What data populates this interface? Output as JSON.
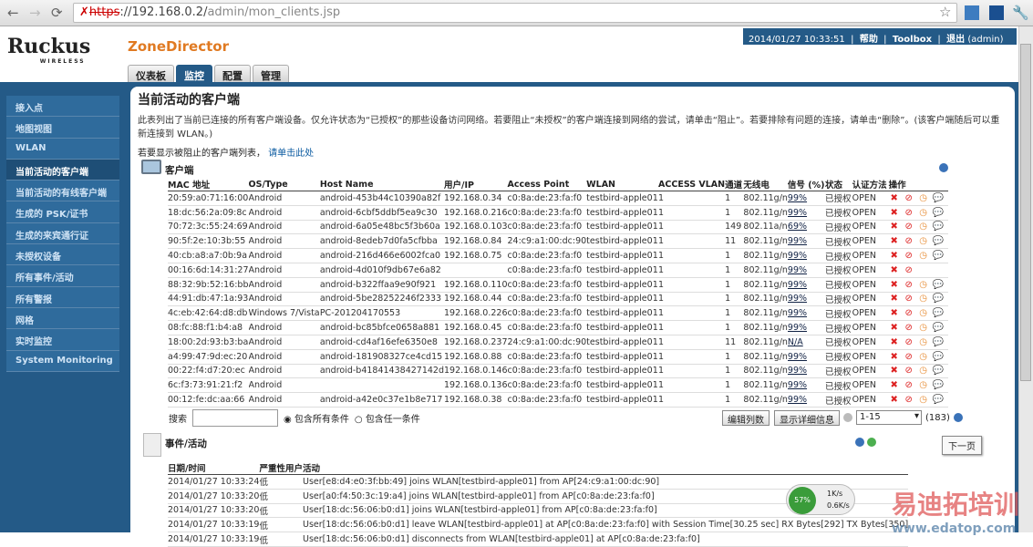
{
  "browser": {
    "url_scheme": "https",
    "url_rest": "://192.168.0.2/",
    "url_path": "admin/mon_clients.jsp"
  },
  "header": {
    "brand": "Ruckus",
    "brand_sub": "WIRELESS",
    "product": "ZoneDirector",
    "datetime": "2014/01/27  10:33:51",
    "help": "帮助",
    "toolbox": "Toolbox",
    "logout": "退出",
    "user": "(admin)"
  },
  "tabs": [
    "仪表板",
    "监控",
    "配置",
    "管理"
  ],
  "active_tab": 1,
  "sidebar": [
    "接入点",
    "地图视图",
    "WLAN",
    "当前活动的客户端",
    "当前活动的有线客户端",
    "生成的 PSK/证书",
    "生成的来宾通行证",
    "未授权设备",
    "所有事件/活动",
    "所有警报",
    "网格",
    "实时监控",
    "System Monitoring"
  ],
  "sidebar_active": 3,
  "main": {
    "title": "当前活动的客户端",
    "description": "此表列出了当前已连接的所有客户端设备。仅允许状态为“已授权”的那些设备访问网络。若要阻止“未授权”的客户端连接到网络的尝试，请单击“阻止”。若要排除有问题的连接，请单击“删除”。(该客户端随后可以重新连接到 WLAN。)",
    "hint": "若要显示被阻止的客户端列表，",
    "hint_link": "请单击此处"
  },
  "clients": {
    "title": "客户端",
    "columns": [
      "MAC 地址",
      "OS/Type",
      "Host Name",
      "用户/IP",
      "Access Point",
      "WLAN",
      "ACCESS VLAN",
      "通道",
      "无线电",
      "信号 (%)",
      "状态",
      "认证方法",
      "操作"
    ],
    "rows": [
      [
        "20:59:a0:71:16:00",
        "Android",
        "android-453b44c10390a82f",
        "192.168.0.34",
        "c0:8a:de:23:fa:f0",
        "testbird-apple01",
        "1",
        "1",
        "802.11g/n",
        "99%",
        "已授权",
        "OPEN",
        4
      ],
      [
        "18:dc:56:2a:09:8c",
        "Android",
        "android-6cbf5ddbf5ea9c30",
        "192.168.0.216",
        "c0:8a:de:23:fa:f0",
        "testbird-apple01",
        "1",
        "1",
        "802.11g/n",
        "99%",
        "已授权",
        "OPEN",
        4
      ],
      [
        "70:72:3c:55:24:69",
        "Android",
        "android-6a05e48bc5f3b60a",
        "192.168.0.103",
        "c0:8a:de:23:fa:f0",
        "testbird-apple01",
        "1",
        "149",
        "802.11a/n",
        "69%",
        "已授权",
        "OPEN",
        4
      ],
      [
        "90:5f:2e:10:3b:55",
        "Android",
        "android-8edeb7d0fa5cfbba",
        "192.168.0.84",
        "24:c9:a1:00:dc:90",
        "testbird-apple01",
        "1",
        "11",
        "802.11g/n",
        "99%",
        "已授权",
        "OPEN",
        4
      ],
      [
        "40:cb:a8:a7:0b:9a",
        "Android",
        "android-216d466e6002fca0",
        "192.168.0.75",
        "c0:8a:de:23:fa:f0",
        "testbird-apple01",
        "1",
        "1",
        "802.11g/n",
        "99%",
        "已授权",
        "OPEN",
        4
      ],
      [
        "00:16:6d:14:31:27",
        "Android",
        "android-4d010f9db67e6a82",
        "",
        "c0:8a:de:23:fa:f0",
        "testbird-apple01",
        "1",
        "1",
        "802.11g/n",
        "99%",
        "已授权",
        "OPEN",
        2
      ],
      [
        "88:32:9b:52:16:bb",
        "Android",
        "android-b322ffaa9e90f921",
        "192.168.0.110",
        "c0:8a:de:23:fa:f0",
        "testbird-apple01",
        "1",
        "1",
        "802.11g/n",
        "99%",
        "已授权",
        "OPEN",
        4
      ],
      [
        "44:91:db:47:1a:93",
        "Android",
        "android-5be28252246f2333",
        "192.168.0.44",
        "c0:8a:de:23:fa:f0",
        "testbird-apple01",
        "1",
        "1",
        "802.11g/n",
        "99%",
        "已授权",
        "OPEN",
        4
      ],
      [
        "4c:eb:42:64:d8:db",
        "Windows 7/Vista",
        "PC-201204170553",
        "192.168.0.226",
        "c0:8a:de:23:fa:f0",
        "testbird-apple01",
        "1",
        "1",
        "802.11g/n",
        "99%",
        "已授权",
        "OPEN",
        4
      ],
      [
        "08:fc:88:f1:b4:a8",
        "Android",
        "android-bc85bfce0658a881",
        "192.168.0.45",
        "c0:8a:de:23:fa:f0",
        "testbird-apple01",
        "1",
        "1",
        "802.11g/n",
        "99%",
        "已授权",
        "OPEN",
        4
      ],
      [
        "18:00:2d:93:b3:ba",
        "Android",
        "android-cd4af16efe6350e8",
        "192.168.0.237",
        "24:c9:a1:00:dc:90",
        "testbird-apple01",
        "1",
        "11",
        "802.11g/n",
        "N/A",
        "已授权",
        "OPEN",
        4
      ],
      [
        "a4:99:47:9d:ec:20",
        "Android",
        "android-181908327ce4cd15",
        "192.168.0.88",
        "c0:8a:de:23:fa:f0",
        "testbird-apple01",
        "1",
        "1",
        "802.11g/n",
        "99%",
        "已授权",
        "OPEN",
        4
      ],
      [
        "00:22:f4:d7:20:ec",
        "Android",
        "android-b41841438427142d",
        "192.168.0.146",
        "c0:8a:de:23:fa:f0",
        "testbird-apple01",
        "1",
        "1",
        "802.11g/n",
        "99%",
        "已授权",
        "OPEN",
        4
      ],
      [
        "6c:f3:73:91:21:f2",
        "Android",
        "",
        "192.168.0.136",
        "c0:8a:de:23:fa:f0",
        "testbird-apple01",
        "1",
        "1",
        "802.11g/n",
        "99%",
        "已授权",
        "OPEN",
        4
      ],
      [
        "00:12:fe:dc:aa:66",
        "Android",
        "android-a42e0c37e1b8e717",
        "192.168.0.38",
        "c0:8a:de:23:fa:f0",
        "testbird-apple01",
        "1",
        "1",
        "802.11g/n",
        "99%",
        "已授权",
        "OPEN",
        4
      ]
    ],
    "search_label": "搜索",
    "search_value": "",
    "radio_all": "包含所有条件",
    "radio_any": "包含任一条件",
    "edit_columns": "编辑列数",
    "show_details": "显示详细信息",
    "page_range": "1-15",
    "total": "(183)",
    "next_tooltip": "下一页"
  },
  "events": {
    "title": "事件/活动",
    "columns": [
      "日期/时间",
      "严重性",
      "用户",
      "活动"
    ],
    "rows": [
      [
        "2014/01/27  10:33:24",
        "低",
        "",
        "User[e8:d4:e0:3f:bb:49] joins WLAN[testbird-apple01] from AP[24:c9:a1:00:dc:90]"
      ],
      [
        "2014/01/27  10:33:20",
        "低",
        "",
        "User[a0:f4:50:3c:19:a4] joins WLAN[testbird-apple01] from AP[c0:8a:de:23:fa:f0]"
      ],
      [
        "2014/01/27  10:33:20",
        "低",
        "",
        "User[18:dc:56:06:b0:d1] joins WLAN[testbird-apple01] from AP[c0:8a:de:23:fa:f0]"
      ],
      [
        "2014/01/27  10:33:19",
        "低",
        "",
        "User[18:dc:56:06:b0:d1] leave WLAN[testbird-apple01] at AP[c0:8a:de:23:fa:f0] with Session Time[30.25 sec] RX Bytes[292] TX Bytes[350]"
      ],
      [
        "2014/01/27  10:33:19",
        "低",
        "",
        "User[18:dc:56:06:b0:d1] disconnects from WLAN[testbird-apple01] at AP[c0:8a:de:23:fa:f0]"
      ]
    ]
  },
  "net_widget": {
    "percent": "57%",
    "up": "1K/s",
    "down": "0.6K/s"
  },
  "watermark": {
    "text": "易迪拓培训",
    "url": "www.edatop.com"
  }
}
